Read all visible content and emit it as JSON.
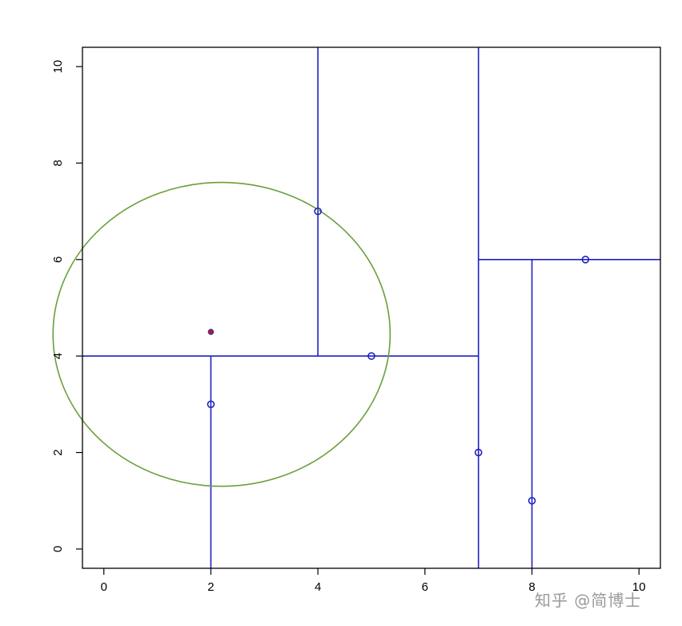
{
  "chart_data": {
    "type": "scatter",
    "title": "",
    "xlabel": "",
    "ylabel": "",
    "xlim": [
      -0.4,
      10.4
    ],
    "ylim": [
      -0.4,
      10.4
    ],
    "x_ticks": [
      0,
      2,
      4,
      6,
      8,
      10
    ],
    "y_ticks": [
      0,
      2,
      4,
      6,
      8,
      10
    ],
    "grid": false,
    "points": [
      {
        "x": 2,
        "y": 3
      },
      {
        "x": 5,
        "y": 4
      },
      {
        "x": 4,
        "y": 7
      },
      {
        "x": 7,
        "y": 2
      },
      {
        "x": 8,
        "y": 1
      },
      {
        "x": 9,
        "y": 6
      }
    ],
    "query_point": {
      "x": 2,
      "y": 4.5
    },
    "search_circle": {
      "cx": 2.2,
      "cy": 4.45,
      "r": 3.15
    },
    "split_lines": [
      {
        "x1": 7,
        "y1": -0.4,
        "x2": 7,
        "y2": 10.4
      },
      {
        "x1": -0.4,
        "y1": 4,
        "x2": 7,
        "y2": 4
      },
      {
        "x1": 2,
        "y1": -0.4,
        "x2": 2,
        "y2": 4
      },
      {
        "x1": 4,
        "y1": 4,
        "x2": 4,
        "y2": 10.4
      },
      {
        "x1": 7,
        "y1": 6,
        "x2": 10.4,
        "y2": 6
      },
      {
        "x1": 8,
        "y1": -0.4,
        "x2": 8,
        "y2": 6
      }
    ],
    "colors": {
      "split": "#2020c0",
      "points": "#2020c0",
      "circle": "#6a9f3a",
      "query_fill": "#c0103a",
      "query_stroke": "#3a3a8a",
      "axis": "#000000"
    }
  },
  "watermark": "知乎 @简博士"
}
